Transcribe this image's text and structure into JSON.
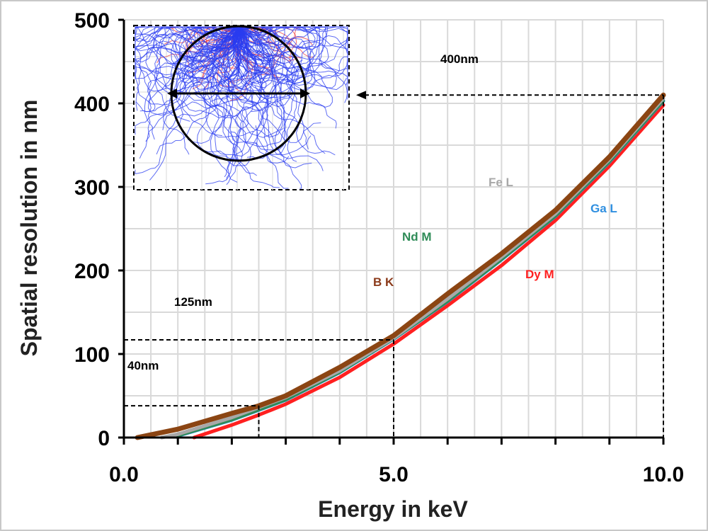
{
  "chart_data": {
    "type": "line",
    "xlabel": "Energy in keV",
    "ylabel": "Spatial resolution in nm",
    "xlim": [
      0,
      10
    ],
    "ylim": [
      0,
      500
    ],
    "x_ticks": [
      "0.0",
      "5.0",
      "10.0"
    ],
    "y_ticks": [
      "0",
      "100",
      "200",
      "300",
      "400",
      "500"
    ],
    "grid": true,
    "x": [
      0.0,
      1.0,
      2.0,
      2.5,
      3.0,
      4.0,
      5.0,
      6.0,
      7.0,
      8.0,
      9.0,
      10.0
    ],
    "series": [
      {
        "name": "B K",
        "color": "#8b4513",
        "values": [
          0,
          10,
          29,
          38,
          50,
          84,
          122,
          172,
          220,
          272,
          336,
          410
        ]
      },
      {
        "name": "Fe L",
        "color": "#a8a8a8",
        "values": [
          0,
          4,
          24,
          36,
          48,
          80,
          119,
          166,
          216,
          268,
          333,
          406
        ]
      },
      {
        "name": "Ga L",
        "color": "#2f8fe0",
        "values": [
          0,
          2,
          21,
          33,
          45,
          78,
          118,
          163,
          213,
          265,
          330,
          403
        ]
      },
      {
        "name": "Nd M",
        "color": "#2e8b57",
        "values": [
          0,
          2,
          21,
          33,
          45,
          78,
          118,
          163,
          213,
          265,
          330,
          403
        ]
      },
      {
        "name": "Dy M",
        "color": "#ff2020",
        "values": [
          0,
          0,
          15,
          27,
          40,
          72,
          112,
          158,
          206,
          260,
          325,
          398
        ]
      }
    ],
    "annotations": [
      {
        "text": "400nm",
        "x": 10,
        "y": 410
      },
      {
        "text": "125nm",
        "x": 5,
        "y": 117
      },
      {
        "text": "40nm",
        "x": 2.5,
        "y": 38
      }
    ]
  },
  "labels": {
    "series": [
      {
        "text": "Fe L",
        "color": "#a8a8a8"
      },
      {
        "text": "Ga L",
        "color": "#2f8fe0"
      },
      {
        "text": "Nd M",
        "color": "#2e8b57"
      },
      {
        "text": "B K",
        "color": "#8b3a1a"
      },
      {
        "text": "Dy M",
        "color": "#ff2020"
      }
    ],
    "a400": "400nm",
    "a125": "125nm",
    "a40": "40nm"
  },
  "inset": {
    "description_icon": "monte-carlo-trajectory-icon"
  }
}
